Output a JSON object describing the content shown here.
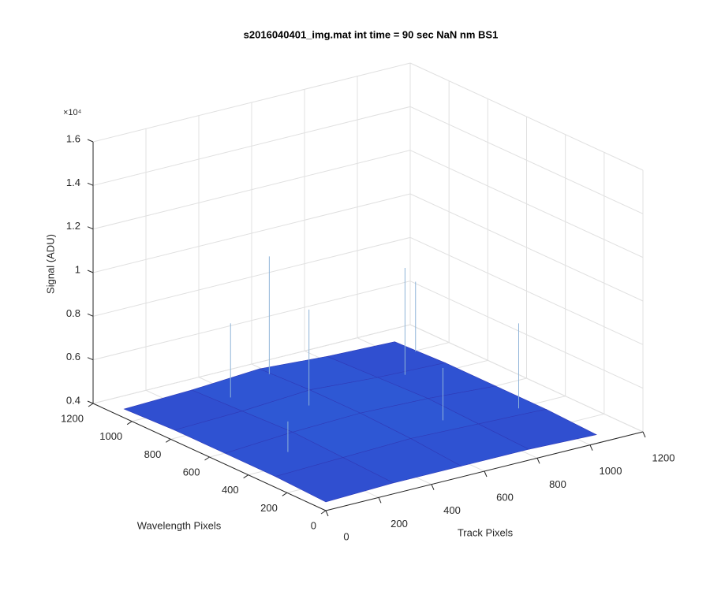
{
  "chart_data": {
    "type": "surface3d",
    "title": "s2016040401_img.mat int time = 90 sec  NaN nm BS1",
    "xlabel": "Track Pixels",
    "ylabel": "Wavelength Pixels",
    "zlabel": "Signal (ADU)",
    "zscale_label": "×10⁴",
    "xlim": [
      0,
      1200
    ],
    "ylim": [
      0,
      1200
    ],
    "zlim": [
      0.4,
      1.6
    ],
    "xticks": [
      0,
      200,
      400,
      600,
      800,
      1000,
      1200
    ],
    "yticks": [
      0,
      200,
      400,
      600,
      800,
      1000,
      1200
    ],
    "zticks": [
      0.4,
      0.6,
      0.8,
      1,
      1.2,
      1.4,
      1.6
    ],
    "grid": true,
    "x": [
      0,
      256,
      512,
      768,
      1024
    ],
    "y": [
      0,
      260,
      520,
      780,
      1040
    ],
    "z": [
      [
        0.44,
        0.45,
        0.45,
        0.45,
        0.44
      ],
      [
        0.45,
        0.46,
        0.47,
        0.46,
        0.45
      ],
      [
        0.45,
        0.47,
        0.48,
        0.47,
        0.45
      ],
      [
        0.45,
        0.46,
        0.48,
        0.46,
        0.45
      ],
      [
        0.44,
        0.45,
        0.47,
        0.45,
        0.44
      ]
    ],
    "spikes": {
      "x": [
        300,
        520,
        450,
        950,
        850,
        150,
        700,
        1000
      ],
      "y": [
        900,
        1000,
        700,
        300,
        750,
        400,
        350,
        900
      ],
      "z": [
        0.8,
        1.0,
        0.9,
        0.85,
        0.95,
        0.6,
        0.7,
        0.78
      ]
    }
  }
}
